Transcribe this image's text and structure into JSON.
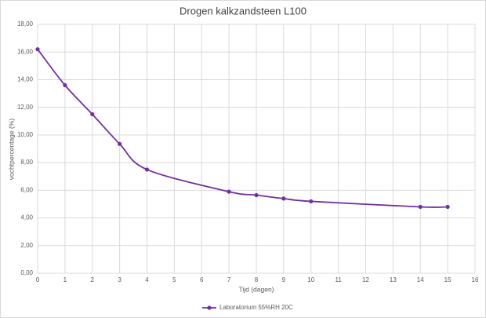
{
  "chart_data": {
    "type": "line",
    "title": "Drogen kalkzandsteen L100",
    "x_label": "Tijd (dagen)",
    "y_label": "vochtpercentage (%)",
    "x": [
      0,
      1,
      2,
      3,
      4,
      7,
      8,
      9,
      10,
      14,
      15
    ],
    "series": [
      {
        "name": "Laboratorium 55%RH 20C",
        "color": "#7030a0",
        "values": [
          16.2,
          13.6,
          11.5,
          9.35,
          7.5,
          5.9,
          5.65,
          5.4,
          5.2,
          4.8,
          4.8
        ]
      }
    ],
    "xlim": [
      0,
      16
    ],
    "xticks": [
      0,
      1,
      2,
      3,
      4,
      5,
      6,
      7,
      8,
      9,
      10,
      11,
      12,
      13,
      14,
      15,
      16
    ],
    "ylim": [
      0,
      18
    ],
    "yticks": [
      {
        "value": 0,
        "label": "0,00"
      },
      {
        "value": 2,
        "label": "2,00"
      },
      {
        "value": 4,
        "label": "4,00"
      },
      {
        "value": 6,
        "label": "6,00"
      },
      {
        "value": 8,
        "label": "8,00"
      },
      {
        "value": 10,
        "label": "10,00"
      },
      {
        "value": 12,
        "label": "12,00"
      },
      {
        "value": 14,
        "label": "14,00"
      },
      {
        "value": 16,
        "label": "16,00"
      },
      {
        "value": 18,
        "label": "18,00"
      }
    ],
    "grid": true,
    "smooth": true,
    "legend": "bottom"
  }
}
